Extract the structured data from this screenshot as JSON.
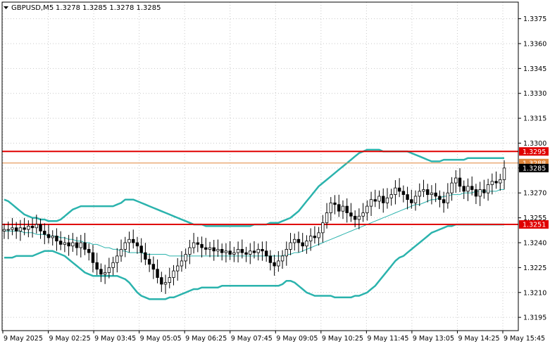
{
  "header": {
    "symbol_timeframe": "GBPUSD,M5",
    "ohlc": "1.3278 1.3285 1.3278 1.3285",
    "collapse_icon": "triangle-down-icon"
  },
  "colors": {
    "background": "#ffffff",
    "grid": "#c8c8c8",
    "candle": "#000000",
    "band": "#2bb3ad",
    "middle_band": "#2bb3ad",
    "resistance_line": "#e00000",
    "support_line": "#e00000",
    "price_line": "#e0863a",
    "badge_red": "#e00000",
    "badge_orange": "#e0863a",
    "badge_black": "#000000"
  },
  "chart_data": {
    "type": "candlestick",
    "ylim": [
      1.3187,
      1.3385
    ],
    "y_ticks": [
      "1.3375",
      "1.3360",
      "1.3345",
      "1.3330",
      "1.3315",
      "1.3300",
      "1.3285",
      "1.3270",
      "1.3255",
      "1.3240",
      "1.3225",
      "1.3210",
      "1.3195"
    ],
    "x_ticks": [
      "9 May 2025",
      "9 May 02:25",
      "9 May 03:45",
      "9 May 05:05",
      "9 May 06:25",
      "9 May 07:45",
      "9 May 09:05",
      "9 May 10:25",
      "9 May 11:45",
      "9 May 13:05",
      "9 May 14:25",
      "9 May 15:45"
    ],
    "grid": true,
    "horizontal_levels": [
      {
        "label": "1.3295",
        "value": 1.3295,
        "color": "#e00000"
      },
      {
        "label": "1.3251",
        "value": 1.3251,
        "color": "#e00000"
      },
      {
        "label": "1.3288",
        "value": 1.3288,
        "color": "#e0863a"
      }
    ],
    "current_price": {
      "label": "1.3285",
      "value": 1.3285
    },
    "closes": [
      1.3248,
      1.3248,
      1.3249,
      1.3247,
      1.3249,
      1.3248,
      1.325,
      1.3249,
      1.3251,
      1.3247,
      1.3245,
      1.3243,
      1.3244,
      1.3241,
      1.3239,
      1.324,
      1.3238,
      1.324,
      1.3237,
      1.324,
      1.3236,
      1.3234,
      1.3228,
      1.3224,
      1.3221,
      1.3222,
      1.3225,
      1.3228,
      1.3232,
      1.3236,
      1.324,
      1.3242,
      1.324,
      1.3238,
      1.3234,
      1.323,
      1.3227,
      1.3224,
      1.3219,
      1.3215,
      1.3216,
      1.3219,
      1.3223,
      1.3226,
      1.3229,
      1.3233,
      1.3237,
      1.324,
      1.3239,
      1.3237,
      1.3236,
      1.3237,
      1.3235,
      1.3236,
      1.3234,
      1.3235,
      1.3233,
      1.3234,
      1.3236,
      1.3234,
      1.3233,
      1.3235,
      1.3234,
      1.3236,
      1.3235,
      1.3232,
      1.3228,
      1.3226,
      1.3229,
      1.3232,
      1.3236,
      1.324,
      1.3242,
      1.324,
      1.3238,
      1.3241,
      1.3244,
      1.3243,
      1.3246,
      1.3252,
      1.3258,
      1.3264,
      1.3263,
      1.3259,
      1.3262,
      1.3258,
      1.3256,
      1.3254,
      1.3256,
      1.3258,
      1.3262,
      1.3266,
      1.3265,
      1.3268,
      1.3264,
      1.3267,
      1.3269,
      1.3273,
      1.3271,
      1.3269,
      1.3266,
      1.3264,
      1.3268,
      1.3271,
      1.3272,
      1.3269,
      1.327,
      1.3268,
      1.3266,
      1.3264,
      1.327,
      1.3276,
      1.3279,
      1.3274,
      1.3271,
      1.3274,
      1.3272,
      1.3268,
      1.3272,
      1.327,
      1.3275,
      1.3277,
      1.3276,
      1.3278,
      1.3285
    ],
    "upper_band": [
      1.3266,
      1.3265,
      1.3263,
      1.3261,
      1.3259,
      1.3257,
      1.3256,
      1.3255,
      1.3255,
      1.3254,
      1.3254,
      1.3253,
      1.3253,
      1.3253,
      1.3254,
      1.3256,
      1.3258,
      1.326,
      1.3261,
      1.3262,
      1.3262,
      1.3262,
      1.3262,
      1.3262,
      1.3262,
      1.3262,
      1.3262,
      1.3262,
      1.3263,
      1.3264,
      1.3266,
      1.3266,
      1.3266,
      1.3265,
      1.3264,
      1.3263,
      1.3262,
      1.3261,
      1.326,
      1.3259,
      1.3258,
      1.3257,
      1.3256,
      1.3255,
      1.3254,
      1.3253,
      1.3252,
      1.3251,
      1.3251,
      1.3251,
      1.325,
      1.325,
      1.325,
      1.325,
      1.325,
      1.325,
      1.325,
      1.325,
      1.325,
      1.325,
      1.325,
      1.325,
      1.3251,
      1.3251,
      1.3251,
      1.3251,
      1.3252,
      1.3252,
      1.3252,
      1.3253,
      1.3254,
      1.3255,
      1.3257,
      1.3259,
      1.3262,
      1.3265,
      1.3268,
      1.3271,
      1.3274,
      1.3276,
      1.3278,
      1.328,
      1.3282,
      1.3284,
      1.3286,
      1.3288,
      1.329,
      1.3292,
      1.3294,
      1.3295,
      1.3296,
      1.3296,
      1.3296,
      1.3296,
      1.3295,
      1.3295,
      1.3295,
      1.3295,
      1.3295,
      1.3295,
      1.3295,
      1.3294,
      1.3293,
      1.3292,
      1.3291,
      1.329,
      1.3289,
      1.3289,
      1.3289,
      1.329,
      1.329,
      1.329,
      1.329,
      1.329,
      1.329,
      1.3291,
      1.3291,
      1.3291,
      1.3291,
      1.3291,
      1.3291,
      1.3291,
      1.3291,
      1.3291,
      1.3291
    ],
    "middle_band": [
      1.3247,
      1.3247,
      1.3247,
      1.3247,
      1.3247,
      1.3246,
      1.3246,
      1.3246,
      1.3245,
      1.3245,
      1.3245,
      1.3244,
      1.3244,
      1.3244,
      1.3243,
      1.3243,
      1.3242,
      1.3242,
      1.3241,
      1.3241,
      1.324,
      1.324,
      1.3239,
      1.3239,
      1.3238,
      1.3237,
      1.3237,
      1.3236,
      1.3236,
      1.3235,
      1.3235,
      1.3234,
      1.3234,
      1.3234,
      1.3234,
      1.3233,
      1.3233,
      1.3233,
      1.3233,
      1.3233,
      1.3233,
      1.3232,
      1.3232,
      1.3232,
      1.3232,
      1.3232,
      1.3232,
      1.3232,
      1.3232,
      1.3232,
      1.3232,
      1.3232,
      1.3232,
      1.3232,
      1.3232,
      1.3232,
      1.3232,
      1.3232,
      1.3232,
      1.3232,
      1.3232,
      1.3232,
      1.3232,
      1.3232,
      1.3232,
      1.3232,
      1.3232,
      1.3232,
      1.3232,
      1.3232,
      1.3233,
      1.3233,
      1.3234,
      1.3234,
      1.3235,
      1.3236,
      1.3237,
      1.3238,
      1.3239,
      1.324,
      1.3241,
      1.3242,
      1.3243,
      1.3244,
      1.3245,
      1.3246,
      1.3247,
      1.3248,
      1.3249,
      1.325,
      1.3251,
      1.3252,
      1.3253,
      1.3254,
      1.3255,
      1.3256,
      1.3257,
      1.3258,
      1.3259,
      1.326,
      1.3261,
      1.3262,
      1.3263,
      1.3263,
      1.3264,
      1.3265,
      1.3266,
      1.3266,
      1.3267,
      1.3268,
      1.3268,
      1.3269,
      1.3269,
      1.3269,
      1.327,
      1.327,
      1.327,
      1.3271,
      1.3271,
      1.3271,
      1.3271,
      1.3271,
      1.3271,
      1.3272,
      1.3272
    ],
    "lower_band": [
      1.3231,
      1.3231,
      1.3231,
      1.3232,
      1.3232,
      1.3232,
      1.3232,
      1.3232,
      1.3233,
      1.3234,
      1.3235,
      1.3235,
      1.3235,
      1.3234,
      1.3233,
      1.3232,
      1.323,
      1.3228,
      1.3226,
      1.3224,
      1.3222,
      1.3221,
      1.322,
      1.322,
      1.322,
      1.322,
      1.322,
      1.322,
      1.322,
      1.3219,
      1.3218,
      1.3216,
      1.3213,
      1.321,
      1.3208,
      1.3207,
      1.3206,
      1.3206,
      1.3206,
      1.3206,
      1.3206,
      1.3207,
      1.3207,
      1.3208,
      1.3209,
      1.321,
      1.3211,
      1.3212,
      1.3212,
      1.3213,
      1.3213,
      1.3213,
      1.3213,
      1.3213,
      1.3214,
      1.3214,
      1.3214,
      1.3214,
      1.3214,
      1.3214,
      1.3214,
      1.3214,
      1.3214,
      1.3214,
      1.3214,
      1.3214,
      1.3214,
      1.3214,
      1.3214,
      1.3215,
      1.3217,
      1.3217,
      1.3216,
      1.3214,
      1.3212,
      1.321,
      1.3209,
      1.3208,
      1.3208,
      1.3208,
      1.3208,
      1.3208,
      1.3207,
      1.3207,
      1.3207,
      1.3207,
      1.3207,
      1.3208,
      1.3208,
      1.3209,
      1.321,
      1.3212,
      1.3214,
      1.3217,
      1.322,
      1.3223,
      1.3226,
      1.3229,
      1.3231,
      1.3232,
      1.3234,
      1.3236,
      1.3238,
      1.324,
      1.3242,
      1.3244,
      1.3246,
      1.3247,
      1.3248,
      1.3249,
      1.325,
      1.325,
      1.3251,
      1.3251,
      1.3251,
      1.3251,
      1.3251,
      1.3251,
      1.3251,
      1.3251,
      1.3251,
      1.3251,
      1.3251,
      1.3251,
      1.3251
    ]
  }
}
